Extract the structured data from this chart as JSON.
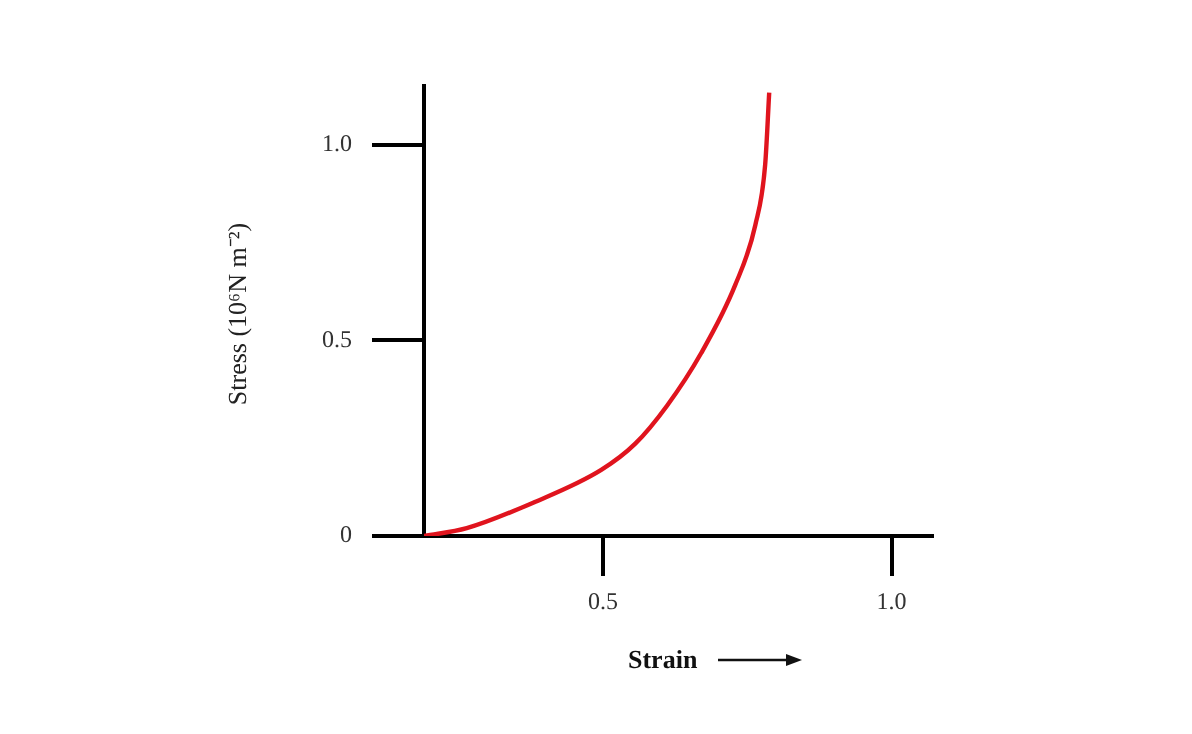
{
  "chart_data": {
    "type": "line",
    "xlabel": "Strain",
    "ylabel": "Stress (10⁶N m⁻²)",
    "xlim": [
      0.19,
      1.07
    ],
    "ylim": [
      0,
      1.15
    ],
    "xticks": [
      0.5,
      {
        "value": 1.0,
        "label": "1.0"
      }
    ],
    "yticks": [
      0,
      0.5,
      {
        "value": 1.0,
        "label": "1.0"
      }
    ],
    "grid": false,
    "legend": false,
    "marker": "none",
    "line_style": "solid",
    "series": [
      {
        "color": "#e0141e",
        "x": [
          0.19,
          0.264,
          0.382,
          0.497,
          0.556,
          0.611,
          0.67,
          0.729,
          0.764,
          0.781,
          0.788
        ],
        "values": [
          0,
          0.02,
          0.087,
          0.169,
          0.236,
          0.333,
          0.467,
          0.641,
          0.795,
          0.949,
          1.133
        ]
      }
    ]
  }
}
